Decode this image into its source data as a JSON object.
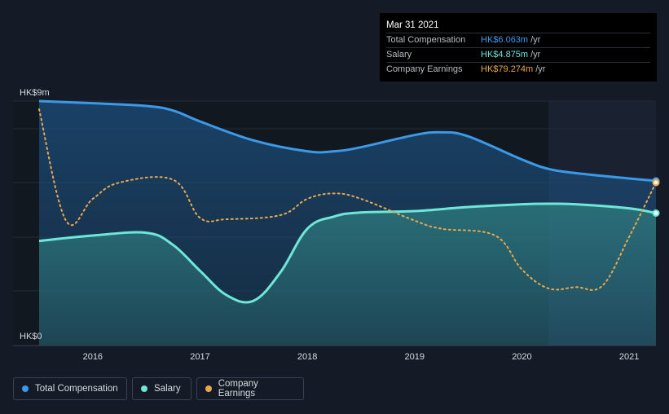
{
  "tooltip": {
    "date": "Mar 31 2021",
    "rows": [
      {
        "label": "Total Compensation",
        "value": "HK$6.063m",
        "unit": "/yr",
        "color": "#3b9ae8"
      },
      {
        "label": "Salary",
        "value": "HK$4.875m",
        "unit": "/yr",
        "color": "#6ee6d8"
      },
      {
        "label": "Company Earnings",
        "value": "HK$79.274m",
        "unit": "/yr",
        "color": "#e8a84e"
      }
    ]
  },
  "legend": [
    {
      "label": "Total Compensation",
      "color": "#3b9ae8"
    },
    {
      "label": "Salary",
      "color": "#6ee6d8"
    },
    {
      "label": "Company Earnings",
      "color": "#e8a84e"
    }
  ],
  "chart_data": {
    "type": "line",
    "ylabel_top": "HK$9m",
    "ylabel_bottom": "HK$0",
    "ylim": [
      0,
      9
    ],
    "xlim": [
      2015.5,
      2021.25
    ],
    "xticks": [
      "2016",
      "2017",
      "2018",
      "2019",
      "2020",
      "2021"
    ],
    "xtick_values": [
      2016,
      2017,
      2018,
      2019,
      2020,
      2021
    ],
    "forecast_start": 2020.25,
    "series": [
      {
        "name": "Total Compensation",
        "color": "#3b9ae8",
        "x": [
          2015.5,
          2016.0,
          2016.5,
          2016.75,
          2017.0,
          2017.5,
          2018.0,
          2018.25,
          2018.5,
          2019.0,
          2019.25,
          2019.5,
          2020.0,
          2020.25,
          2020.5,
          2021.0,
          2021.25
        ],
        "y": [
          9.0,
          8.92,
          8.82,
          8.65,
          8.25,
          7.55,
          7.15,
          7.15,
          7.3,
          7.75,
          7.85,
          7.7,
          6.85,
          6.5,
          6.35,
          6.15,
          6.063
        ]
      },
      {
        "name": "Salary",
        "color": "#6ee6d8",
        "x": [
          2015.5,
          2016.0,
          2016.5,
          2016.75,
          2017.0,
          2017.25,
          2017.5,
          2017.75,
          2018.0,
          2018.25,
          2018.5,
          2019.0,
          2019.5,
          2020.0,
          2020.25,
          2020.5,
          2021.0,
          2021.25
        ],
        "y": [
          3.85,
          4.05,
          4.15,
          3.7,
          2.75,
          1.85,
          1.65,
          2.7,
          4.3,
          4.75,
          4.9,
          4.95,
          5.1,
          5.2,
          5.22,
          5.2,
          5.05,
          4.875
        ]
      },
      {
        "name": "Company Earnings",
        "color": "#e8a84e",
        "x": [
          2015.5,
          2015.75,
          2016.0,
          2016.25,
          2016.75,
          2017.0,
          2017.25,
          2017.75,
          2018.0,
          2018.25,
          2018.5,
          2019.0,
          2019.25,
          2019.75,
          2020.0,
          2020.25,
          2020.5,
          2020.75,
          2021.0,
          2021.25
        ],
        "y": [
          8.7,
          4.6,
          5.4,
          6.0,
          6.1,
          4.7,
          4.65,
          4.8,
          5.4,
          5.6,
          5.4,
          4.6,
          4.3,
          4.05,
          2.8,
          2.1,
          2.15,
          2.2,
          4.0,
          6.0
        ]
      }
    ]
  }
}
